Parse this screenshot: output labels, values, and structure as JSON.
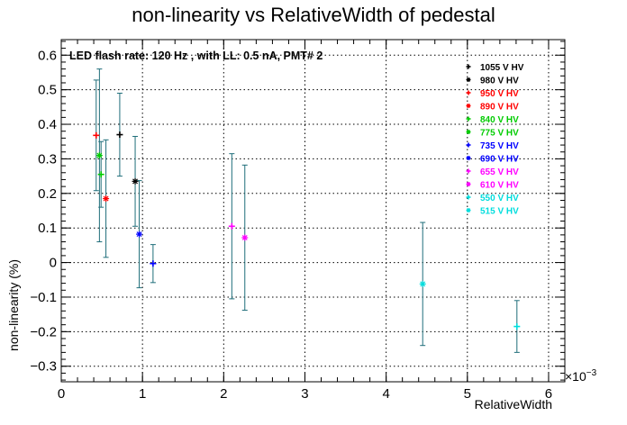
{
  "chart_data": {
    "type": "scatter",
    "title": "non-linearity vs RelativeWidth of pedestal",
    "xlabel": "RelativeWidth",
    "ylabel": "non-linearity (%)",
    "x_multiplier": "×10",
    "x_multiplier_exp": "−3",
    "annotation": "LED flash rate: 120 Hz , with LL: 0.5 nA, PMT# 2",
    "xlim": [
      0,
      0.0062
    ],
    "ylim": [
      -0.345,
      0.645
    ],
    "x_ticks": [
      0,
      0.001,
      0.002,
      0.003,
      0.004,
      0.005,
      0.006
    ],
    "x_tick_labels": [
      "0",
      "1",
      "2",
      "3",
      "4",
      "5",
      "6"
    ],
    "y_ticks": [
      -0.3,
      -0.2,
      -0.1,
      0,
      0.1,
      0.2,
      0.3,
      0.4,
      0.5,
      0.6
    ],
    "y_tick_labels": [
      "−0.3",
      "−0.2",
      "−0.1",
      "0",
      "0.1",
      "0.2",
      "0.3",
      "0.4",
      "0.5",
      "0.6"
    ],
    "grid": true,
    "legend_position": "top-right",
    "error_bar_color": "#1f6e7a",
    "series": [
      {
        "name": "1055 V HV",
        "color": "#000000",
        "marker": "plus",
        "x": 0.00072,
        "y": 0.37,
        "err": 0.12
      },
      {
        "name": "980 V HV",
        "color": "#000000",
        "marker": "star",
        "x": 0.00091,
        "y": 0.235,
        "err": 0.13
      },
      {
        "name": "950 V HV",
        "color": "#ff0000",
        "marker": "plus",
        "x": 0.00043,
        "y": 0.368,
        "err": 0.16
      },
      {
        "name": "890 V HV",
        "color": "#ff0000",
        "marker": "star",
        "x": 0.00055,
        "y": 0.185,
        "err": 0.17
      },
      {
        "name": "840 V HV",
        "color": "#00cc00",
        "marker": "plus",
        "x": 0.00049,
        "y": 0.255,
        "err": 0.095
      },
      {
        "name": "775 V HV",
        "color": "#00cc00",
        "marker": "star",
        "x": 0.00047,
        "y": 0.31,
        "err": 0.25
      },
      {
        "name": "735 V HV",
        "color": "#0000ff",
        "marker": "plus",
        "x": 0.00113,
        "y": -0.003,
        "err": 0.055
      },
      {
        "name": "690 V HV",
        "color": "#0000ff",
        "marker": "star",
        "x": 0.00096,
        "y": 0.082,
        "err": 0.155
      },
      {
        "name": "655 V HV",
        "color": "#ff00ff",
        "marker": "plus",
        "x": 0.0021,
        "y": 0.105,
        "err": 0.21
      },
      {
        "name": "610 V HV",
        "color": "#ff00ff",
        "marker": "star",
        "x": 0.00226,
        "y": 0.072,
        "err": 0.21
      },
      {
        "name": "550 V HV",
        "color": "#00dddd",
        "marker": "plus",
        "x": 0.00561,
        "y": -0.185,
        "err": 0.075
      },
      {
        "name": "515 V HV",
        "color": "#00dddd",
        "marker": "star",
        "x": 0.00445,
        "y": -0.062,
        "err": 0.178
      }
    ]
  }
}
